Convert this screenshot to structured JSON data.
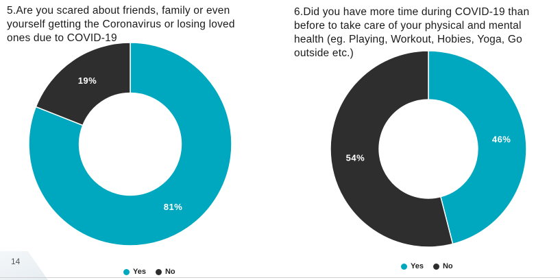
{
  "page_number": "14",
  "colors": {
    "yes": "#00a8bf",
    "no": "#2e2e2e",
    "label_yes": "#ffffff",
    "label_no": "#ffffff"
  },
  "chart_data": [
    {
      "type": "pie",
      "variant": "donut",
      "title": "5.Are you scared about friends, family or even\nyourself getting the Coronavirus or losing loved\n ones due to COVID-19",
      "categories": [
        "Yes",
        "No"
      ],
      "values": [
        81,
        19
      ],
      "value_labels": [
        "81%",
        "19%"
      ],
      "legend": {
        "position": "bottom",
        "entries": [
          "Yes",
          "No"
        ]
      }
    },
    {
      "type": "pie",
      "variant": "donut",
      "title": " 6.Did you have more time during COVID-19 than\nbefore to take care of your physical and mental\nhealth (eg. Playing, Workout, Hobies, Yoga, Go\noutside etc.)",
      "categories": [
        "Yes",
        "No"
      ],
      "values": [
        46,
        54
      ],
      "value_labels": [
        "46%",
        "54%"
      ],
      "legend": {
        "position": "bottom",
        "entries": [
          "Yes",
          "No"
        ]
      }
    }
  ]
}
